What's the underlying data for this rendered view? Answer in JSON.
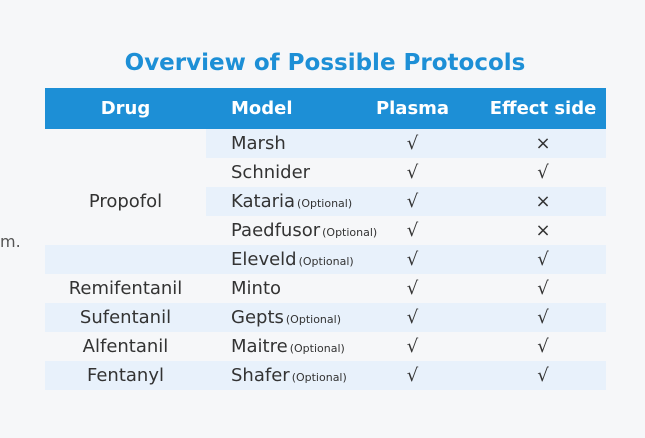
{
  "stray_text": "m.",
  "title": "Overview of Possible Protocols",
  "headers": {
    "drug": "Drug",
    "model": "Model",
    "plasma": "Plasma",
    "effect": "Effect side"
  },
  "drugs": [
    {
      "name": "Propofol"
    },
    {
      "name": "Remifentanil"
    },
    {
      "name": "Sufentanil"
    },
    {
      "name": "Alfentanil"
    },
    {
      "name": "Fentanyl"
    }
  ],
  "rows": [
    {
      "model": "Marsh",
      "optional": "",
      "plasma": "√",
      "effect": "×"
    },
    {
      "model": "Schnider",
      "optional": "",
      "plasma": "√",
      "effect": "√"
    },
    {
      "model": "Kataria",
      "optional": "(Optional)",
      "plasma": "√",
      "effect": "×"
    },
    {
      "model": "Paedfusor",
      "optional": "(Optional)",
      "plasma": "√",
      "effect": "×"
    },
    {
      "model": "Eleveld",
      "optional": "(Optional)",
      "plasma": "√",
      "effect": "√"
    },
    {
      "model": "Minto",
      "optional": "",
      "plasma": "√",
      "effect": "√"
    },
    {
      "model": "Gepts",
      "optional": "(Optional)",
      "plasma": "√",
      "effect": "√"
    },
    {
      "model": "Maitre",
      "optional": "(Optional)",
      "plasma": "√",
      "effect": "√"
    },
    {
      "model": "Shafer",
      "optional": "(Optional)",
      "plasma": "√",
      "effect": "√"
    }
  ]
}
